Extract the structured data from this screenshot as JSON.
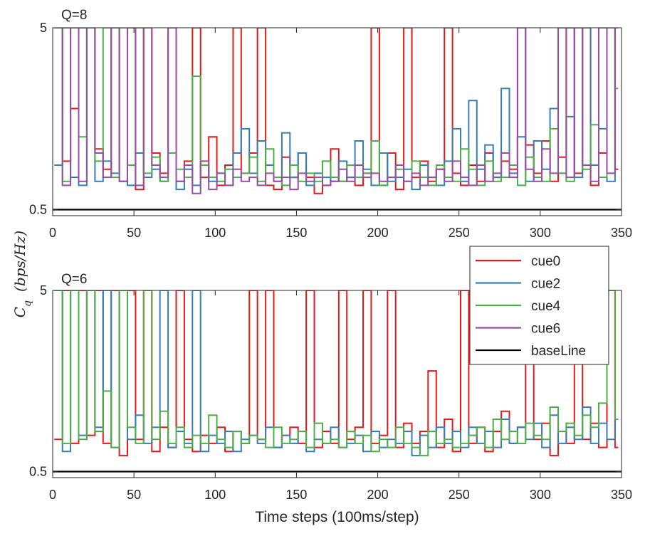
{
  "chart_data": [
    {
      "type": "line",
      "title": "Q=8",
      "xlabel": "",
      "ylabel": "C_q (bps/Hz)",
      "xlim": [
        0,
        350
      ],
      "ylim": [
        0.35,
        5
      ],
      "xticks": [
        0,
        50,
        100,
        150,
        200,
        250,
        300,
        350
      ],
      "xtick_labels": [
        "0",
        "50",
        "100",
        "150",
        "200",
        "250",
        "300",
        "350"
      ],
      "yticks": [
        0.5,
        5
      ],
      "ytick_labels": [
        "0.5",
        "5"
      ],
      "x_start": 1,
      "series": [
        {
          "name": "cue0",
          "color": "#e41a1c",
          "step": 5,
          "values": [
            5.0,
            1.7,
            3.0,
            5.0,
            5.0,
            2.0,
            1.5,
            5.0,
            1.2,
            5.0,
            1.0,
            5.0,
            1.9,
            1.4,
            5.0,
            1.2,
            1.7,
            5.0,
            1.3,
            2.3,
            1.1,
            1.6,
            5.0,
            1.4,
            1.9,
            5.0,
            1.1,
            1.0,
            1.8,
            1.3,
            1.9,
            1.3,
            0.9,
            1.1,
            2.0,
            1.2,
            1.3,
            1.1,
            1.4,
            5.0,
            1.1,
            1.9,
            1.0,
            5.0,
            1.3,
            1.7,
            1.2,
            1.5,
            5.0,
            1.4,
            1.1,
            1.6,
            1.2,
            1.9,
            1.3,
            1.7,
            1.5,
            5.0,
            2.1,
            1.4,
            2.2,
            1.2,
            1.8,
            5.0,
            1.4,
            5.0,
            1.1,
            1.9,
            5.0,
            1.5
          ]
        },
        {
          "name": "cue2",
          "color": "#377eb8",
          "step": 5,
          "values": [
            1.6,
            5.0,
            1.3,
            1.1,
            5.0,
            1.2,
            1.7,
            1.4,
            5.0,
            1.1,
            1.9,
            1.3,
            1.5,
            1.2,
            1.9,
            1.0,
            1.5,
            1.1,
            1.6,
            1.2,
            1.4,
            1.1,
            1.9,
            2.5,
            1.4,
            2.2,
            1.6,
            1.2,
            2.4,
            1.3,
            1.9,
            1.1,
            1.4,
            1.3,
            1.2,
            1.7,
            1.3,
            2.2,
            1.5,
            1.1,
            1.9,
            1.2,
            1.3,
            1.5,
            1.0,
            1.6,
            1.3,
            1.1,
            1.7,
            2.5,
            1.2,
            3.2,
            1.5,
            2.1,
            1.3,
            3.5,
            1.4,
            2.3,
            1.2,
            2.2,
            1.5,
            3.0,
            1.4,
            2.8,
            1.3,
            5.0,
            1.6,
            2.5,
            1.2,
            5.0
          ]
        },
        {
          "name": "cue4",
          "color": "#4daf4a",
          "step": 5,
          "values": [
            5.0,
            1.2,
            5.0,
            2.3,
            5.0,
            1.7,
            5.0,
            1.3,
            5.0,
            1.6,
            5.0,
            1.4,
            1.8,
            1.2,
            1.9,
            1.5,
            1.3,
            3.8,
            1.6,
            1.3,
            1.2,
            1.5,
            1.3,
            1.4,
            1.8,
            1.2,
            2.0,
            1.3,
            1.1,
            1.6,
            1.2,
            1.4,
            1.2,
            1.7,
            1.3,
            1.2,
            1.6,
            1.3,
            1.4,
            2.2,
            1.1,
            1.3,
            1.5,
            1.2,
            1.7,
            1.3,
            1.1,
            1.6,
            1.3,
            1.2,
            2.0,
            1.5,
            1.1,
            1.7,
            1.2,
            1.3,
            1.6,
            1.1,
            1.8,
            1.3,
            1.2,
            2.5,
            1.4,
            1.2,
            5.0,
            1.5,
            2.6,
            1.3,
            5.0,
            3.5
          ]
        },
        {
          "name": "cue6",
          "color": "#984ea3",
          "step": 5,
          "values": [
            5.0,
            1.1,
            5.0,
            1.2,
            5.0,
            1.9,
            1.3,
            5.0,
            1.2,
            5.0,
            1.1,
            5.0,
            1.6,
            1.3,
            5.0,
            1.2,
            1.6,
            0.9,
            1.7,
            1.0,
            1.4,
            1.1,
            1.5,
            1.2,
            1.3,
            1.1,
            1.4,
            1.2,
            1.3,
            1.0,
            1.4,
            1.2,
            1.3,
            1.1,
            1.2,
            1.5,
            1.2,
            1.6,
            1.3,
            1.4,
            1.2,
            1.3,
            1.6,
            1.2,
            1.4,
            1.1,
            1.3,
            1.5,
            1.2,
            1.7,
            1.3,
            1.1,
            1.6,
            1.2,
            1.4,
            1.9,
            1.3,
            5.0,
            1.5,
            1.2,
            2.0,
            1.4,
            5.0,
            1.3,
            5.0,
            1.6,
            1.2,
            5.0,
            1.4,
            5.0
          ]
        }
      ],
      "baseline": {
        "name": "baseLine",
        "value": 0.5,
        "color": "#000000"
      }
    },
    {
      "type": "line",
      "title": "Q=6",
      "xlabel": "Time steps (100ms/step)",
      "ylabel": "C_q (bps/Hz)",
      "xlim": [
        0,
        350
      ],
      "ylim": [
        0.35,
        5
      ],
      "xticks": [
        0,
        50,
        100,
        150,
        200,
        250,
        300,
        350
      ],
      "xtick_labels": [
        "0",
        "50",
        "100",
        "150",
        "200",
        "250",
        "300",
        "350"
      ],
      "yticks": [
        0.5,
        5
      ],
      "ytick_labels": [
        "0.5",
        "5"
      ],
      "x_start": 1,
      "series": [
        {
          "name": "cue0",
          "color": "#e41a1c",
          "step": 5,
          "values": [
            1.3,
            5.0,
            1.2,
            5.0,
            1.4,
            5.0,
            1.2,
            5.0,
            0.9,
            5.0,
            1.3,
            5.0,
            1.0,
            1.6,
            1.1,
            5.0,
            1.3,
            1.0,
            1.4,
            1.2,
            1.6,
            1.0,
            1.5,
            1.2,
            5.0,
            1.3,
            5.0,
            1.1,
            1.4,
            1.6,
            1.2,
            5.0,
            1.1,
            1.5,
            1.2,
            5.0,
            1.3,
            1.6,
            5.0,
            1.2,
            1.4,
            5.0,
            1.1,
            1.7,
            1.2,
            1.5,
            3.0,
            1.1,
            1.8,
            1.0,
            5.0,
            1.2,
            1.6,
            1.0,
            1.5,
            2.0,
            1.2,
            1.6,
            5.0,
            1.3,
            1.7,
            0.9,
            1.5,
            1.2,
            5.0,
            1.3,
            1.7,
            1.1,
            5.0,
            1.1
          ]
        },
        {
          "name": "cue2",
          "color": "#377eb8",
          "step": 5,
          "values": [
            5.0,
            1.0,
            5.0,
            1.4,
            5.0,
            1.6,
            5.0,
            1.1,
            5.0,
            1.3,
            1.9,
            1.2,
            1.6,
            5.0,
            1.1,
            1.5,
            1.2,
            5.0,
            1.0,
            1.4,
            1.2,
            1.5,
            1.0,
            1.3,
            1.4,
            1.2,
            1.6,
            1.1,
            1.4,
            1.2,
            1.5,
            1.0,
            1.3,
            1.2,
            1.6,
            1.1,
            1.2,
            1.4,
            1.0,
            1.5,
            1.1,
            1.3,
            1.2,
            1.5,
            0.9,
            1.4,
            1.1,
            1.6,
            1.2,
            1.5,
            1.1,
            1.6,
            1.2,
            1.5,
            1.1,
            1.8,
            1.2,
            1.6,
            1.3,
            1.7,
            1.1,
            1.9,
            1.2,
            1.6,
            1.3,
            2.1,
            1.2,
            1.7,
            1.3,
            1.8
          ]
        },
        {
          "name": "cue4",
          "color": "#4daf4a",
          "step": 5,
          "values": [
            5.0,
            1.2,
            5.0,
            1.3,
            5.0,
            1.5,
            2.5,
            1.1,
            5.0,
            1.6,
            1.2,
            5.0,
            1.3,
            2.0,
            1.2,
            1.6,
            1.1,
            1.4,
            1.2,
            1.9,
            1.3,
            1.1,
            1.5,
            1.2,
            1.4,
            1.3,
            1.1,
            1.6,
            1.2,
            1.3,
            1.5,
            1.1,
            1.7,
            1.2,
            1.3,
            1.1,
            1.5,
            1.2,
            1.4,
            1.0,
            1.3,
            1.1,
            1.6,
            1.2,
            1.1,
            0.9,
            1.5,
            1.2,
            1.3,
            1.1,
            1.2,
            1.4,
            1.6,
            1.1,
            1.8,
            1.3,
            1.5,
            1.2,
            1.7,
            1.4,
            1.3,
            2.1,
            1.5,
            1.7,
            1.4,
            1.9,
            1.6,
            2.2,
            5.0,
            1.8
          ]
        }
      ],
      "baseline": {
        "name": "baseLine",
        "value": 0.5,
        "color": "#000000"
      }
    }
  ],
  "legend": {
    "placement": "right-middle",
    "entries": [
      {
        "label": "cue0",
        "color": "#e41a1c"
      },
      {
        "label": "cue2",
        "color": "#377eb8"
      },
      {
        "label": "cue4",
        "color": "#4daf4a"
      },
      {
        "label": "cue6",
        "color": "#984ea3"
      },
      {
        "label": "baseLine",
        "color": "#000000"
      }
    ]
  },
  "shared_ylabel": "C_q (bps/Hz)",
  "colors": {
    "axis": "#262626",
    "background": "#ffffff"
  }
}
